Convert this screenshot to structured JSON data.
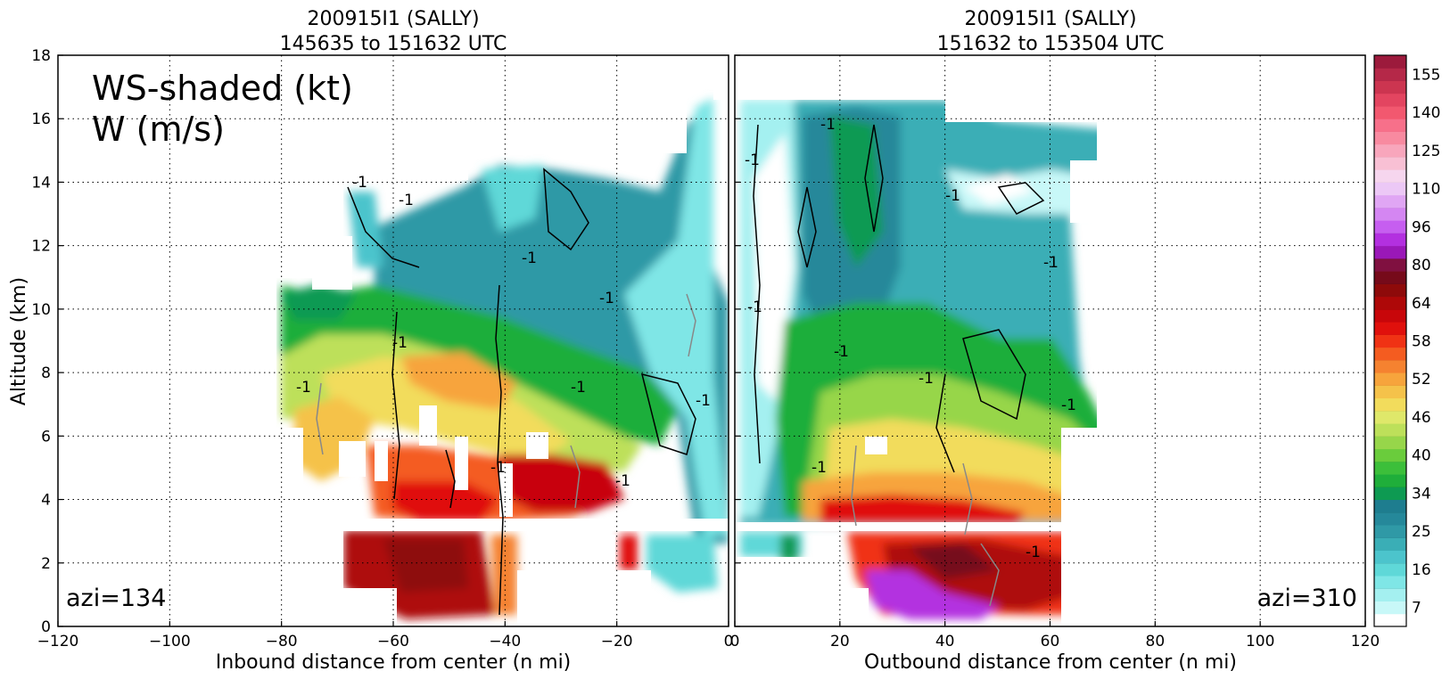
{
  "chart_data": [
    {
      "type": "heatmap",
      "title_line1": "200915I1 (SALLY)",
      "title_line2": "145635 to 151632 UTC",
      "xlabel": "Inbound distance from center (n mi)",
      "ylabel": "Altitude (km)",
      "xlim": [
        -120,
        0
      ],
      "ylim": [
        0,
        18
      ],
      "x_ticks": [
        "−120",
        "−100",
        "−80",
        "−60",
        "−40",
        "−20",
        "0"
      ],
      "x_tick_values": [
        -120,
        -100,
        -80,
        -60,
        -40,
        -20,
        0
      ],
      "y_ticks": [
        "0",
        "2",
        "4",
        "6",
        "8",
        "10",
        "12",
        "14",
        "16",
        "18"
      ],
      "y_tick_values": [
        0,
        2,
        4,
        6,
        8,
        10,
        12,
        14,
        16,
        18
      ],
      "grid": true,
      "annotation_line1": "WS-shaded (kt)",
      "annotation_line2": "W (m/s)",
      "azimuth_label": "azi=134",
      "contour_label": "-1"
    },
    {
      "type": "heatmap",
      "title_line1": "200915I1 (SALLY)",
      "title_line2": "151632 to 153504 UTC",
      "xlabel": "Outbound distance from center (n mi)",
      "xlim": [
        0,
        120
      ],
      "ylim": [
        0,
        18
      ],
      "x_ticks": [
        "0",
        "20",
        "40",
        "60",
        "80",
        "100",
        "120"
      ],
      "x_tick_values": [
        0,
        20,
        40,
        60,
        80,
        100,
        120
      ],
      "grid": true,
      "azimuth_label": "azi=310",
      "contour_label": "-1"
    }
  ],
  "colorbar": {
    "labels": [
      "7",
      "16",
      "25",
      "34",
      "40",
      "46",
      "52",
      "58",
      "64",
      "80",
      "96",
      "110",
      "125",
      "140",
      "155"
    ],
    "colors": [
      "#ffffff",
      "#c8f8f8",
      "#a4f0f0",
      "#7fe6e6",
      "#5fd8d8",
      "#4cc4cc",
      "#3aaeb6",
      "#2f99a6",
      "#25889a",
      "#1e7d8f",
      "#0e9a52",
      "#1fae3a",
      "#3cbf3a",
      "#6acc3c",
      "#97d64a",
      "#bde05a",
      "#dfe86a",
      "#f2dc5c",
      "#f5c24a",
      "#f7a43c",
      "#f58230",
      "#f45c20",
      "#f03214",
      "#e0100c",
      "#c8060a",
      "#ae0808",
      "#8e0a0a",
      "#760a1a",
      "#801040",
      "#9a18b8",
      "#b330e0",
      "#c65ef0",
      "#d486f2",
      "#e0a6f4",
      "#ecc8f6",
      "#f6d6ee",
      "#f8c0d4",
      "#f8a6bc",
      "#f88aa0",
      "#f7708a",
      "#f2586f",
      "#e34560",
      "#cc3550",
      "#b52848",
      "#9c1a3c"
    ]
  }
}
